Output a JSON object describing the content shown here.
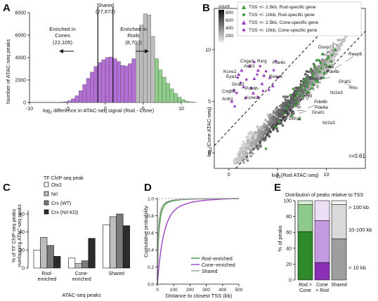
{
  "panels": {
    "A": {
      "letter": "A",
      "ylabel": "Number of ATAC-seq peaks",
      "xlabel": "log2 difference in ATAC-seq signal (Rod - Cone)",
      "xlabel_main": "log",
      "xlabel_sub": "2",
      "xlabel_rest": " difference in ATAC-seq signal (Rod - Cone)",
      "annotations": {
        "shared": "Shared",
        "shared_count": "(27,673)",
        "cones": "Enriched in\nCones",
        "cones_l1": "Enriched in",
        "cones_l2": "Cones",
        "cones_count": "(22,105)",
        "rods_l1": "Enriched in",
        "rods_l2": "Rods",
        "rods_count": "(8,703)"
      },
      "colors": {
        "cone": "#b36fd6",
        "shared": "#bdbdbd",
        "rod": "#8fcf8a"
      }
    },
    "B": {
      "letter": "B",
      "ylabel": "log2(Cone ATAC-seq)",
      "ylabel_a": "log",
      "ylabel_sub": "2",
      "ylabel_b": "(Cone ATAC-seq)",
      "xlabel_a": "log",
      "xlabel_sub": "2",
      "xlabel_b": "(Rod ATAC-seq)",
      "count_label": "count",
      "count_ticks": [
        "800",
        "600",
        "400",
        "200"
      ],
      "legend": [
        "TSS +/- 2.5kb, Rod-specific gene",
        "TSS +/- 10kb, Rod-specific gene",
        "TSS +/- 2.5kb, Cone-specific gene",
        "TSS +/- 10kb, Cone-specific gene"
      ],
      "r_text": "r=0.61",
      "genes": [
        "Dusp23",
        "Reep6",
        "Arr3",
        "Gnat1",
        "Pde6b",
        "Reep6",
        "Rho",
        "Nr2e3",
        "Cnga3",
        "Rxrg",
        "Pde6c",
        "Arrb1",
        "Kcne2",
        "Eya1",
        "Gnat2",
        "Pde6h",
        "Reep6",
        "Cngb3",
        "Arrb1",
        "Kcne2",
        "Nrl",
        "Pde6b",
        "Pde6a",
        "Gnat1",
        "Nr2e3",
        "Esrrb",
        "Dhrs3"
      ],
      "colors": {
        "rod": "#3f9a3a",
        "cone": "#9b3fc4"
      }
    },
    "C": {
      "letter": "C",
      "legend_title": "TF ChIP-seq peak",
      "legend": [
        "Otx2",
        "Nrl",
        "Crx (WT)",
        "Crx (Nrl KO)"
      ],
      "ylabel_l1": "% of TF ChIP-seq peaks",
      "ylabel_l2": "overlapping ATAC-seq peaks",
      "xlabel": "ATAC-seq peaks",
      "groups": [
        "Rod-\nenriched",
        "Cone-\nenriched",
        "Shared"
      ],
      "group_l1": [
        "Rod-",
        "Cone-",
        "Shared"
      ],
      "group_l2": [
        "enriched",
        "enriched",
        ""
      ],
      "colors": [
        "#ffffff",
        "#bdbdbd",
        "#7a7a7a",
        "#2b2b2b"
      ]
    },
    "D": {
      "letter": "D",
      "ylabel": "Cumulative probability",
      "xlabel": "Distance to closest TSS (kb)",
      "legend": [
        "Rod−enriched",
        "Cone−enriched",
        "Shared"
      ],
      "colors": [
        "#3f9a3a",
        "#9b3fc4",
        "#9e9e9e"
      ]
    },
    "E": {
      "letter": "E",
      "title": "Distribution of peaks relative to TSS",
      "ylabel": "% of peaks",
      "bins": [
        "> 100 kb",
        "10-100 kb",
        "< 10 kb"
      ],
      "group_l1": [
        "Rod >",
        "Cone",
        "Shared"
      ],
      "group_l2": [
        "Cone",
        "> Rod",
        ""
      ]
    }
  },
  "chart_data": [
    {
      "panel": "A",
      "type": "bar",
      "title": "",
      "xlabel": "log2 difference in ATAC-seq signal (Rod - Cone)",
      "ylabel": "Number of ATAC-seq peaks",
      "xlim": [
        -10,
        10
      ],
      "ylim": [
        0,
        8000
      ],
      "xticks": [
        -10,
        -5,
        0,
        5,
        10
      ],
      "yticks": [
        0,
        2000,
        4000,
        6000,
        8000
      ],
      "bin_width": 0.5,
      "bin_start": -7,
      "values": [
        5,
        10,
        25,
        60,
        150,
        330,
        600,
        1050,
        1600,
        2150,
        2700,
        3200,
        3550,
        3800,
        4000,
        4050,
        3900,
        3650,
        3300,
        3250,
        3450,
        3900,
        5200,
        6900,
        7900,
        7800,
        5900,
        3900,
        2900,
        2250,
        1700,
        1200,
        800,
        470,
        250,
        110,
        45,
        15
      ],
      "groups": [
        "cone",
        "cone",
        "cone",
        "cone",
        "cone",
        "cone",
        "cone",
        "cone",
        "cone",
        "cone",
        "cone",
        "cone",
        "cone",
        "cone",
        "cone",
        "cone",
        "cone",
        "cone",
        "cone",
        "cone",
        "cone",
        "cone",
        "shared",
        "shared",
        "shared",
        "shared",
        "shared",
        "rod",
        "rod",
        "rod",
        "rod",
        "rod",
        "rod",
        "rod",
        "rod",
        "rod",
        "rod",
        "rod"
      ],
      "thresholds": [
        -1,
        1
      ]
    },
    {
      "panel": "B",
      "type": "scatter",
      "xlabel": "log2(Rod ATAC-seq)",
      "ylabel": "log2(Cone ATAC-seq)",
      "xlim": [
        -1.5,
        14
      ],
      "ylim": [
        -1.5,
        14
      ],
      "xticks": [
        0,
        5,
        10
      ],
      "yticks": [
        0,
        5,
        10
      ],
      "r": 0.61,
      "series": [
        {
          "name": "TSS +/- 2.5kb, Rod-specific gene",
          "marker": "triangle",
          "points": [
            [
              9.6,
              9.6
            ],
            [
              10.2,
              9.3
            ],
            [
              10.9,
              10.0
            ],
            [
              9.9,
              8.6
            ],
            [
              8.8,
              8.5
            ],
            [
              9.3,
              7.9
            ],
            [
              8.6,
              7.4
            ],
            [
              9.8,
              7.8
            ],
            [
              10.3,
              8.4
            ],
            [
              8.1,
              6.9
            ],
            [
              7.5,
              6.5
            ],
            [
              7.1,
              5.7
            ],
            [
              8.5,
              6.3
            ],
            [
              6.4,
              3.6
            ],
            [
              7.2,
              3.3
            ],
            [
              9.1,
              6.9
            ],
            [
              10.5,
              8.9
            ],
            [
              9.0,
              9.0
            ],
            [
              6.8,
              4.6
            ],
            [
              7.8,
              6.1
            ]
          ]
        },
        {
          "name": "TSS +/- 10kb, Rod-specific gene",
          "marker": "dot",
          "points": [
            [
              9.2,
              9.0
            ],
            [
              8.4,
              8.0
            ],
            [
              9.5,
              8.2
            ],
            [
              7.9,
              7.2
            ],
            [
              8.9,
              7.0
            ],
            [
              7.3,
              6.0
            ],
            [
              6.8,
              5.3
            ],
            [
              8.2,
              5.9
            ],
            [
              9.7,
              7.3
            ],
            [
              6.1,
              4.7
            ],
            [
              5.7,
              3.9
            ],
            [
              7.0,
              4.9
            ],
            [
              8.6,
              6.6
            ],
            [
              10.1,
              9.1
            ],
            [
              7.6,
              5.5
            ],
            [
              5.2,
              3.0
            ],
            [
              6.6,
              6.2
            ],
            [
              9.4,
              8.7
            ],
            [
              8.0,
              6.5
            ],
            [
              6.3,
              5.6
            ],
            [
              10.6,
              9.5
            ],
            [
              7.7,
              7.0
            ],
            [
              5.9,
              4.3
            ],
            [
              8.7,
              7.7
            ],
            [
              9.0,
              8.1
            ],
            [
              6.9,
              5.8
            ],
            [
              4.8,
              2.5
            ],
            [
              3.8,
              0.4
            ]
          ]
        },
        {
          "name": "TSS +/- 2.5kb, Cone-specific gene",
          "marker": "triangle",
          "points": [
            [
              1.3,
              8.0
            ],
            [
              2.1,
              8.4
            ],
            [
              3.0,
              8.0
            ],
            [
              1.0,
              7.6
            ],
            [
              2.6,
              7.2
            ],
            [
              4.2,
              7.3
            ],
            [
              2.5,
              5.8
            ],
            [
              1.5,
              6.4
            ],
            [
              0.5,
              6.1
            ],
            [
              0.3,
              5.0
            ],
            [
              3.4,
              6.7
            ],
            [
              4.5,
              6.5
            ],
            [
              3.6,
              7.5
            ]
          ]
        },
        {
          "name": "TSS +/- 10kb, Cone-specific gene",
          "marker": "dot",
          "points": [
            [
              1.8,
              7.1
            ],
            [
              3.2,
              8.4
            ],
            [
              0.8,
              5.8
            ],
            [
              2.9,
              7.6
            ],
            [
              4.6,
              8.0
            ],
            [
              1.2,
              6.8
            ],
            [
              4.1,
              6.1
            ],
            [
              2.3,
              6.3
            ],
            [
              3.8,
              7.9
            ],
            [
              0.6,
              4.5
            ],
            [
              5.0,
              7.3
            ],
            [
              3.0,
              5.4
            ],
            [
              1.7,
              5.3
            ],
            [
              2.6,
              8.8
            ],
            [
              4.8,
              8.9
            ],
            [
              3.5,
              6.0
            ],
            [
              0.9,
              7.3
            ]
          ]
        }
      ]
    },
    {
      "panel": "C",
      "type": "bar",
      "ylabel": "% of TF ChIP-seq peaks overlapping ATAC-seq peaks",
      "xlabel": "ATAC-seq peaks",
      "ylim": [
        0,
        60
      ],
      "yticks": [
        0,
        20,
        40,
        60
      ],
      "categories": [
        "Rod-enriched",
        "Cone-enriched",
        "Shared"
      ],
      "series": [
        {
          "name": "Otx2",
          "values": [
            20,
            11,
            48
          ]
        },
        {
          "name": "Nrl",
          "values": [
            34,
            5,
            57
          ]
        },
        {
          "name": "Crx (WT)",
          "values": [
            25,
            8,
            60
          ]
        },
        {
          "name": "Crx (Nrl KO)",
          "values": [
            13,
            33,
            47
          ]
        }
      ]
    },
    {
      "panel": "D",
      "type": "line",
      "xlabel": "Distance to closest TSS (kb)",
      "ylabel": "Cumulative probability",
      "xlim": [
        0,
        500
      ],
      "ylim": [
        0,
        1
      ],
      "xticks": [
        0,
        100,
        200,
        300,
        400,
        500
      ],
      "yticks": [
        0,
        0.2,
        0.4,
        0.6,
        0.8,
        1.0
      ],
      "x": [
        0,
        5,
        10,
        20,
        30,
        40,
        50,
        60,
        80,
        100,
        125,
        150,
        200,
        250,
        300,
        400,
        500
      ],
      "series": [
        {
          "name": "Rod−enriched",
          "values": [
            0.06,
            0.45,
            0.63,
            0.8,
            0.87,
            0.91,
            0.935,
            0.95,
            0.965,
            0.975,
            0.982,
            0.987,
            0.992,
            0.995,
            0.997,
            0.999,
            1.0
          ]
        },
        {
          "name": "Cone−enriched",
          "values": [
            0.01,
            0.12,
            0.22,
            0.38,
            0.5,
            0.59,
            0.66,
            0.72,
            0.8,
            0.855,
            0.895,
            0.92,
            0.953,
            0.97,
            0.981,
            0.993,
            1.0
          ]
        },
        {
          "name": "Shared",
          "values": [
            0.1,
            0.58,
            0.74,
            0.86,
            0.91,
            0.935,
            0.952,
            0.962,
            0.975,
            0.983,
            0.988,
            0.991,
            0.995,
            0.997,
            0.998,
            0.999,
            1.0
          ]
        }
      ]
    },
    {
      "panel": "E",
      "type": "bar",
      "stacked": true,
      "title": "Distribution of peaks relative to TSS",
      "ylabel": "% of peaks",
      "ylim": [
        0,
        100
      ],
      "yticks": [
        0,
        20,
        40,
        60,
        80,
        100
      ],
      "categories": [
        "Rod > Cone",
        "Cone > Rod",
        "Shared"
      ],
      "series": [
        {
          "name": "< 10 kb",
          "values": [
            61,
            22,
            52
          ],
          "colors": [
            "#2f8a2b",
            "#8a2fb6",
            "#9e9e9e"
          ]
        },
        {
          "name": "10-100 kb",
          "values": [
            34,
            53,
            43
          ],
          "colors": [
            "#8cc98a",
            "#c59be0",
            "#d9d9d9"
          ]
        },
        {
          "name": "> 100 kb",
          "values": [
            5,
            25,
            5
          ],
          "colors": [
            "#d8eed6",
            "#ecdff5",
            "#f2f2f2"
          ]
        }
      ]
    }
  ]
}
